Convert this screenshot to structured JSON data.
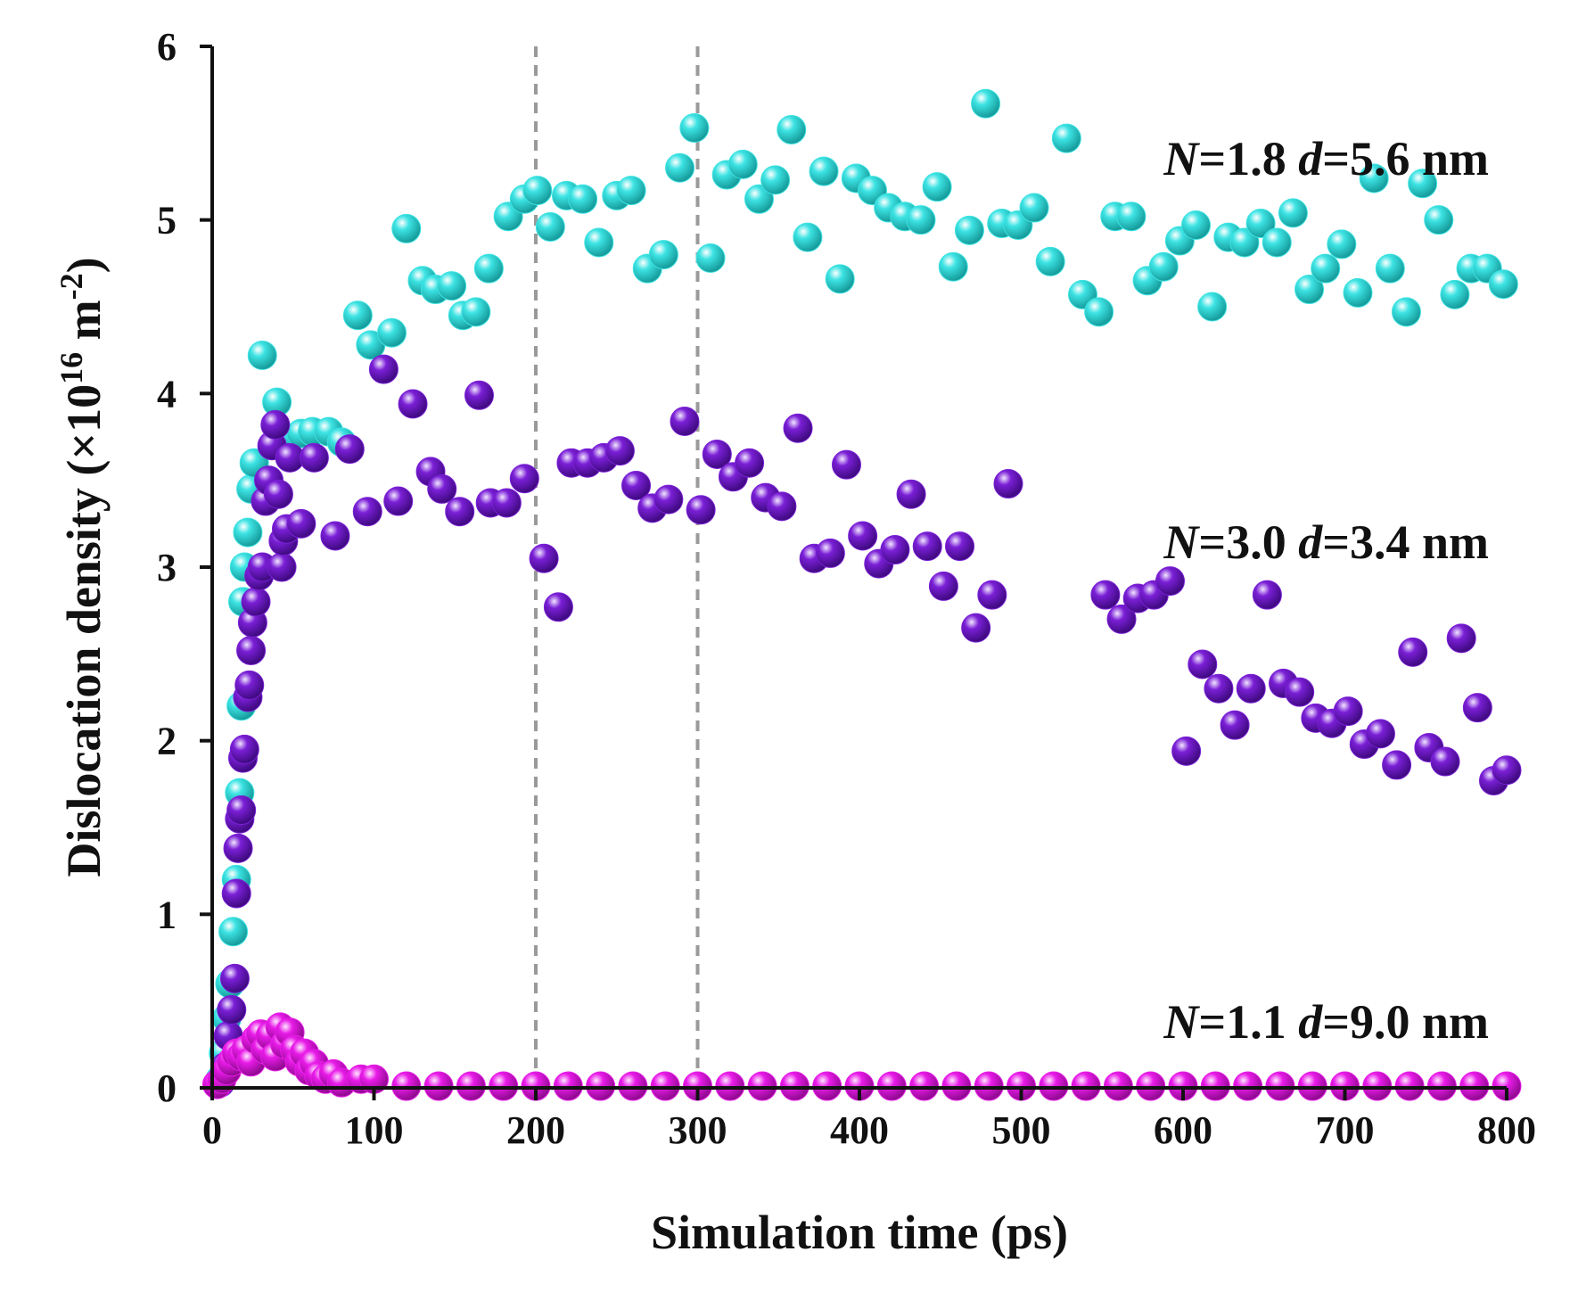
{
  "chart_data": {
    "type": "scatter",
    "xlabel": "Simulation time (ps)",
    "ylabel_main": "Dislocation density (×10",
    "ylabel_exp": "16",
    "ylabel_unit": " m",
    "ylabel_unit_exp": "-2",
    "ylabel_close": ")",
    "xlim": [
      0,
      800
    ],
    "ylim": [
      0,
      6
    ],
    "xticks": [
      "0",
      "100",
      "200",
      "300",
      "400",
      "500",
      "600",
      "700",
      "800"
    ],
    "yticks": [
      "0",
      "1",
      "2",
      "3",
      "4",
      "5",
      "6"
    ],
    "reference_lines_x": [
      200,
      300
    ],
    "grid": false,
    "colors": {
      "cyan": "#3de3e3",
      "purple": "#7a1fd6",
      "magenta": "#e81be8"
    },
    "series": [
      {
        "name_N": "N",
        "name_N_value": "=1.8",
        "name_d": "d",
        "name_d_value": "=5.6 nm",
        "color": "#3de3e3",
        "points": [
          [
            5,
            0.05
          ],
          [
            7,
            0.2
          ],
          [
            9,
            0.4
          ],
          [
            11,
            0.6
          ],
          [
            13,
            0.9
          ],
          [
            15,
            1.2
          ],
          [
            17,
            1.7
          ],
          [
            18,
            2.2
          ],
          [
            19,
            2.8
          ],
          [
            20,
            3.0
          ],
          [
            22,
            3.2
          ],
          [
            24,
            3.45
          ],
          [
            26,
            3.6
          ],
          [
            31,
            4.22
          ],
          [
            40,
            3.95
          ],
          [
            45,
            3.75
          ],
          [
            55,
            3.77
          ],
          [
            62,
            3.78
          ],
          [
            72,
            3.78
          ],
          [
            80,
            3.72
          ],
          [
            90,
            4.45
          ],
          [
            98,
            4.28
          ],
          [
            111,
            4.35
          ],
          [
            120,
            4.95
          ],
          [
            130,
            4.65
          ],
          [
            138,
            4.6
          ],
          [
            148,
            4.62
          ],
          [
            155,
            4.45
          ],
          [
            163,
            4.47
          ],
          [
            171,
            4.72
          ],
          [
            183,
            5.02
          ],
          [
            193,
            5.12
          ],
          [
            201,
            5.17
          ],
          [
            209,
            4.96
          ],
          [
            219,
            5.14
          ],
          [
            229,
            5.12
          ],
          [
            239,
            4.87
          ],
          [
            250,
            5.14
          ],
          [
            259,
            5.17
          ],
          [
            269,
            4.72
          ],
          [
            279,
            4.8
          ],
          [
            289,
            5.3
          ],
          [
            298,
            5.53
          ],
          [
            308,
            4.78
          ],
          [
            318,
            5.26
          ],
          [
            328,
            5.32
          ],
          [
            338,
            5.12
          ],
          [
            348,
            5.23
          ],
          [
            358,
            5.52
          ],
          [
            368,
            4.9
          ],
          [
            378,
            5.28
          ],
          [
            388,
            4.66
          ],
          [
            398,
            5.24
          ],
          [
            408,
            5.17
          ],
          [
            418,
            5.07
          ],
          [
            428,
            5.02
          ],
          [
            438,
            5.0
          ],
          [
            448,
            5.19
          ],
          [
            458,
            4.73
          ],
          [
            468,
            4.94
          ],
          [
            478,
            5.67
          ],
          [
            488,
            4.98
          ],
          [
            498,
            4.97
          ],
          [
            508,
            5.07
          ],
          [
            518,
            4.76
          ],
          [
            528,
            5.47
          ],
          [
            538,
            4.57
          ],
          [
            548,
            4.47
          ],
          [
            558,
            5.02
          ],
          [
            568,
            5.02
          ],
          [
            578,
            4.65
          ],
          [
            588,
            4.73
          ],
          [
            598,
            4.88
          ],
          [
            608,
            4.97
          ],
          [
            618,
            4.5
          ],
          [
            628,
            4.9
          ],
          [
            638,
            4.87
          ],
          [
            648,
            4.98
          ],
          [
            658,
            4.87
          ],
          [
            668,
            5.04
          ],
          [
            678,
            4.6
          ],
          [
            688,
            4.72
          ],
          [
            698,
            4.86
          ],
          [
            708,
            4.58
          ],
          [
            718,
            5.24
          ],
          [
            728,
            4.72
          ],
          [
            738,
            4.47
          ],
          [
            748,
            5.21
          ],
          [
            758,
            5.0
          ],
          [
            768,
            4.57
          ],
          [
            778,
            4.72
          ],
          [
            788,
            4.72
          ],
          [
            798,
            4.63
          ]
        ]
      },
      {
        "name_N": "N",
        "name_N_value": "=3.0",
        "name_d": "d",
        "name_d_value": "=3.4 nm",
        "color": "#7a1fd6",
        "points": [
          [
            5,
            0.03
          ],
          [
            8,
            0.12
          ],
          [
            10,
            0.3
          ],
          [
            12,
            0.45
          ],
          [
            14,
            0.63
          ],
          [
            15,
            1.12
          ],
          [
            16,
            1.38
          ],
          [
            17,
            1.55
          ],
          [
            18,
            1.6
          ],
          [
            19,
            1.9
          ],
          [
            20,
            1.95
          ],
          [
            22,
            2.25
          ],
          [
            23,
            2.32
          ],
          [
            24,
            2.52
          ],
          [
            25,
            2.68
          ],
          [
            27,
            2.8
          ],
          [
            29,
            2.95
          ],
          [
            31,
            3.0
          ],
          [
            33,
            3.38
          ],
          [
            35,
            3.5
          ],
          [
            37,
            3.7
          ],
          [
            39,
            3.82
          ],
          [
            41,
            3.42
          ],
          [
            43,
            3.0
          ],
          [
            44,
            3.15
          ],
          [
            46,
            3.22
          ],
          [
            48,
            3.63
          ],
          [
            55,
            3.25
          ],
          [
            63,
            3.63
          ],
          [
            76,
            3.18
          ],
          [
            85,
            3.68
          ],
          [
            96,
            3.32
          ],
          [
            106,
            4.14
          ],
          [
            115,
            3.38
          ],
          [
            124,
            3.94
          ],
          [
            135,
            3.55
          ],
          [
            142,
            3.45
          ],
          [
            153,
            3.32
          ],
          [
            165,
            3.99
          ],
          [
            172,
            3.37
          ],
          [
            182,
            3.37
          ],
          [
            193,
            3.51
          ],
          [
            205,
            3.05
          ],
          [
            214,
            2.77
          ],
          [
            222,
            3.6
          ],
          [
            232,
            3.6
          ],
          [
            242,
            3.63
          ],
          [
            252,
            3.67
          ],
          [
            262,
            3.47
          ],
          [
            272,
            3.34
          ],
          [
            282,
            3.39
          ],
          [
            292,
            3.84
          ],
          [
            302,
            3.33
          ],
          [
            312,
            3.65
          ],
          [
            322,
            3.52
          ],
          [
            332,
            3.6
          ],
          [
            342,
            3.4
          ],
          [
            352,
            3.35
          ],
          [
            362,
            3.8
          ],
          [
            372,
            3.05
          ],
          [
            382,
            3.08
          ],
          [
            392,
            3.59
          ],
          [
            402,
            3.18
          ],
          [
            412,
            3.02
          ],
          [
            422,
            3.1
          ],
          [
            432,
            3.42
          ],
          [
            442,
            3.12
          ],
          [
            452,
            2.89
          ],
          [
            462,
            3.12
          ],
          [
            472,
            2.65
          ],
          [
            482,
            2.84
          ],
          [
            492,
            3.48
          ],
          [
            552,
            2.84
          ],
          [
            562,
            2.7
          ],
          [
            572,
            2.82
          ],
          [
            582,
            2.84
          ],
          [
            592,
            2.92
          ],
          [
            602,
            1.94
          ],
          [
            612,
            2.44
          ],
          [
            622,
            2.3
          ],
          [
            632,
            2.09
          ],
          [
            642,
            2.3
          ],
          [
            652,
            2.84
          ],
          [
            662,
            2.33
          ],
          [
            672,
            2.28
          ],
          [
            682,
            2.13
          ],
          [
            692,
            2.1
          ],
          [
            702,
            2.17
          ],
          [
            712,
            1.98
          ],
          [
            722,
            2.04
          ],
          [
            732,
            1.86
          ],
          [
            742,
            2.51
          ],
          [
            752,
            1.96
          ],
          [
            762,
            1.88
          ],
          [
            772,
            2.59
          ],
          [
            782,
            2.19
          ],
          [
            792,
            1.77
          ],
          [
            800,
            1.83
          ]
        ]
      },
      {
        "name_N": "N",
        "name_N_value": "=1.1",
        "name_d": "d",
        "name_d_value": "=9.0 nm",
        "color": "#e81be8",
        "points": [
          [
            3,
            0.02
          ],
          [
            6,
            0.05
          ],
          [
            9,
            0.1
          ],
          [
            12,
            0.15
          ],
          [
            15,
            0.2
          ],
          [
            18,
            0.18
          ],
          [
            21,
            0.22
          ],
          [
            24,
            0.15
          ],
          [
            27,
            0.28
          ],
          [
            30,
            0.31
          ],
          [
            33,
            0.22
          ],
          [
            36,
            0.3
          ],
          [
            39,
            0.18
          ],
          [
            42,
            0.35
          ],
          [
            45,
            0.25
          ],
          [
            48,
            0.32
          ],
          [
            51,
            0.22
          ],
          [
            54,
            0.15
          ],
          [
            57,
            0.2
          ],
          [
            60,
            0.1
          ],
          [
            63,
            0.14
          ],
          [
            66,
            0.07
          ],
          [
            70,
            0.05
          ],
          [
            75,
            0.08
          ],
          [
            80,
            0.03
          ],
          [
            92,
            0.05
          ],
          [
            100,
            0.05
          ],
          [
            120,
            0.01
          ],
          [
            140,
            0.01
          ],
          [
            160,
            0.01
          ],
          [
            180,
            0.01
          ],
          [
            200,
            0.01
          ],
          [
            220,
            0.01
          ],
          [
            240,
            0.01
          ],
          [
            260,
            0.01
          ],
          [
            280,
            0.01
          ],
          [
            300,
            0.01
          ],
          [
            320,
            0.01
          ],
          [
            340,
            0.01
          ],
          [
            360,
            0.01
          ],
          [
            380,
            0.01
          ],
          [
            400,
            0.01
          ],
          [
            420,
            0.01
          ],
          [
            440,
            0.01
          ],
          [
            460,
            0.01
          ],
          [
            480,
            0.01
          ],
          [
            500,
            0.01
          ],
          [
            520,
            0.01
          ],
          [
            540,
            0.01
          ],
          [
            560,
            0.01
          ],
          [
            580,
            0.01
          ],
          [
            600,
            0.01
          ],
          [
            620,
            0.01
          ],
          [
            640,
            0.01
          ],
          [
            660,
            0.01
          ],
          [
            680,
            0.01
          ],
          [
            700,
            0.01
          ],
          [
            720,
            0.01
          ],
          [
            740,
            0.01
          ],
          [
            760,
            0.01
          ],
          [
            780,
            0.01
          ],
          [
            800,
            0.01
          ]
        ]
      }
    ]
  }
}
